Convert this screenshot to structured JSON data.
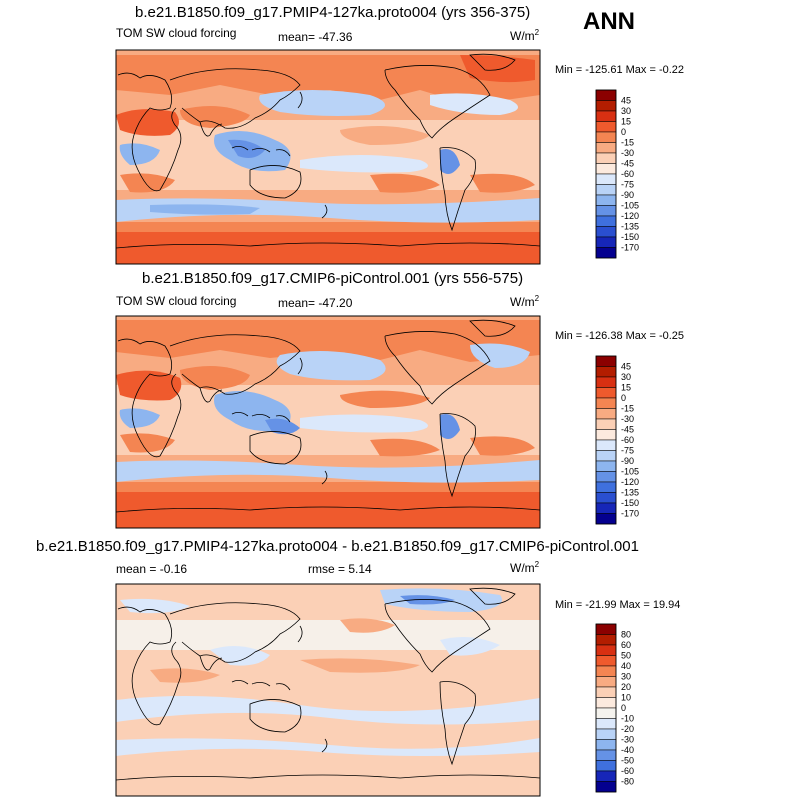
{
  "season": "ANN",
  "chart_data": [
    {
      "type": "heatmap",
      "title": "b.e21.B1850.f09_g17.PMIP4-127ka.proto004 (yrs 356-375)",
      "left_label": "TOM SW cloud forcing",
      "mean_text": "mean= -47.36",
      "units": "W/m",
      "units_exp": "2",
      "minmax_text": "Min = -125.61 Max =  -0.22",
      "levels": [
        "45",
        "30",
        "15",
        "0",
        "-15",
        "-30",
        "-45",
        "-60",
        "-75",
        "-90",
        "-105",
        "-120",
        "-135",
        "-150",
        "-170"
      ],
      "colors": [
        "#8b0000",
        "#b31d00",
        "#d83012",
        "#ef5a2d",
        "#f48552",
        "#f8ab82",
        "#fbd0b6",
        "#fceade",
        "#dbe8fb",
        "#b9d3f7",
        "#8db5ef",
        "#6592e6",
        "#3f70de",
        "#2a4fd0",
        "#1626b8",
        "#04008f"
      ]
    },
    {
      "type": "heatmap",
      "title": "b.e21.B1850.f09_g17.CMIP6-piControl.001 (yrs 556-575)",
      "left_label": "TOM SW cloud forcing",
      "mean_text": "mean= -47.20",
      "units": "W/m",
      "units_exp": "2",
      "minmax_text": "Min = -126.38 Max =  -0.25",
      "levels": [
        "45",
        "30",
        "15",
        "0",
        "-15",
        "-30",
        "-45",
        "-60",
        "-75",
        "-90",
        "-105",
        "-120",
        "-135",
        "-150",
        "-170"
      ],
      "colors": [
        "#8b0000",
        "#b31d00",
        "#d83012",
        "#ef5a2d",
        "#f48552",
        "#f8ab82",
        "#fbd0b6",
        "#fceade",
        "#dbe8fb",
        "#b9d3f7",
        "#8db5ef",
        "#6592e6",
        "#3f70de",
        "#2a4fd0",
        "#1626b8",
        "#04008f"
      ]
    },
    {
      "type": "heatmap",
      "title": "b.e21.B1850.f09_g17.PMIP4-127ka.proto004 - b.e21.B1850.f09_g17.CMIP6-piControl.001",
      "left_label": "mean =  -0.16",
      "mean_text": "rmse =   5.14",
      "units": "W/m",
      "units_exp": "2",
      "minmax_text": "Min = -21.99 Max =  19.94",
      "levels": [
        "80",
        "60",
        "50",
        "40",
        "30",
        "20",
        "10",
        "0",
        "-10",
        "-20",
        "-30",
        "-40",
        "-50",
        "-60",
        "-80"
      ],
      "colors": [
        "#8b0000",
        "#b31d00",
        "#d83012",
        "#ef5a2d",
        "#f48552",
        "#f8ab82",
        "#fbd0b6",
        "#fceade",
        "#f5f3ee",
        "#dbe8fb",
        "#b9d3f7",
        "#8db5ef",
        "#6592e6",
        "#3f70de",
        "#1626b8",
        "#04008f"
      ]
    }
  ]
}
